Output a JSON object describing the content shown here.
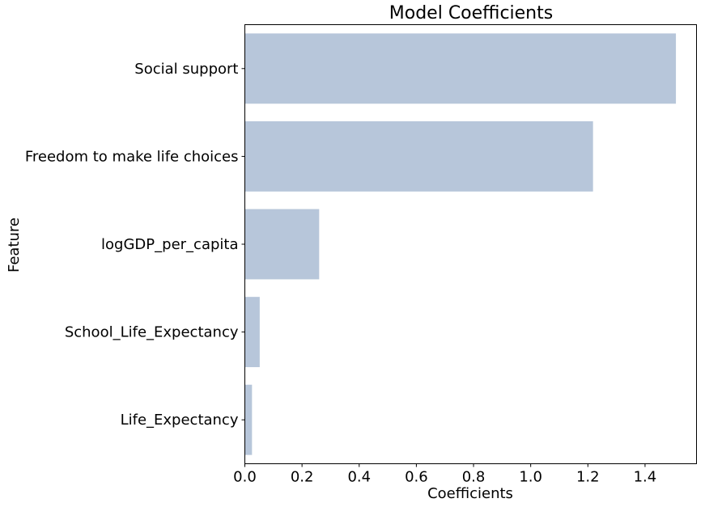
{
  "chart_data": {
    "type": "bar",
    "orientation": "horizontal",
    "title": "Model Coefficients",
    "xlabel": "Coefficients",
    "ylabel": "Feature",
    "categories": [
      "Social support",
      "Freedom to make life choices",
      "logGDP_per_capita",
      "School_Life_Expectancy",
      "Life_Expectancy"
    ],
    "values": [
      1.508,
      1.218,
      0.26,
      0.052,
      0.025
    ],
    "xlim": [
      0,
      1.58
    ],
    "xticks": [
      "0.0",
      "0.2",
      "0.4",
      "0.6",
      "0.8",
      "1.0",
      "1.2",
      "1.4"
    ],
    "grid": false,
    "bar_color": "#b7c6da"
  }
}
